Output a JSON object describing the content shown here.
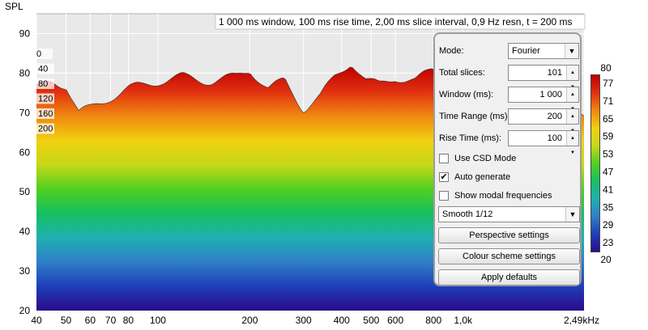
{
  "chart_data": {
    "type": "waterfall",
    "ylabel": "SPL",
    "title": "1 000 ms window, 100 ms rise time, 2,00 ms slice interval, 0,9 Hz resn, t = 200 ms",
    "ylim": [
      20,
      95
    ],
    "xlim": [
      40,
      2490
    ],
    "x_log": true,
    "y_ticks": [
      20,
      30,
      40,
      50,
      60,
      70,
      80,
      90
    ],
    "x_ticks": [
      {
        "f": 40,
        "label": "40"
      },
      {
        "f": 50,
        "label": "50"
      },
      {
        "f": 60,
        "label": "60"
      },
      {
        "f": 70,
        "label": "70"
      },
      {
        "f": 80,
        "label": "80"
      },
      {
        "f": 100,
        "label": "100"
      },
      {
        "f": 200,
        "label": "200"
      },
      {
        "f": 300,
        "label": "300"
      },
      {
        "f": 400,
        "label": "400"
      },
      {
        "f": 500,
        "label": "500"
      },
      {
        "f": 600,
        "label": "600"
      },
      {
        "f": 800,
        "label": "800"
      },
      {
        "f": 1000,
        "label": "1,0k"
      },
      {
        "f": 2490,
        "label": "2,49kHz"
      }
    ],
    "slice_time_labels": [
      "0",
      "40",
      "80",
      "120",
      "160",
      "200"
    ],
    "first_slice_spl": [
      [
        40,
        76
      ],
      [
        45,
        78
      ],
      [
        50,
        77
      ],
      [
        55,
        70
      ],
      [
        60,
        71
      ],
      [
        70,
        74
      ],
      [
        80,
        76
      ],
      [
        90,
        77
      ],
      [
        100,
        78
      ],
      [
        120,
        79
      ],
      [
        150,
        78
      ],
      [
        180,
        79
      ],
      [
        200,
        81
      ],
      [
        230,
        76
      ],
      [
        260,
        78
      ],
      [
        300,
        71
      ],
      [
        340,
        74
      ],
      [
        380,
        79
      ],
      [
        430,
        83
      ],
      [
        480,
        78
      ],
      [
        530,
        77
      ],
      [
        600,
        79
      ],
      [
        700,
        78
      ],
      [
        800,
        81
      ],
      [
        900,
        78
      ],
      [
        1000,
        77
      ],
      [
        1200,
        76
      ],
      [
        1500,
        74
      ],
      [
        2000,
        72
      ],
      [
        2490,
        70
      ]
    ],
    "last_slice_spl": [
      [
        40,
        41
      ],
      [
        50,
        38
      ],
      [
        60,
        37
      ],
      [
        80,
        35
      ],
      [
        100,
        34
      ],
      [
        150,
        34
      ],
      [
        200,
        33
      ],
      [
        300,
        31
      ],
      [
        500,
        29
      ],
      [
        800,
        28
      ],
      [
        1200,
        27
      ],
      [
        2490,
        25
      ]
    ],
    "colour_scale": {
      "min": 20,
      "max": 80,
      "ticks": [
        20,
        23,
        29,
        35,
        41,
        47,
        53,
        59,
        65,
        71,
        77,
        80
      ],
      "colors": [
        "#2b0a8c",
        "#1e3fb8",
        "#2f7fc8",
        "#1fb0b0",
        "#16c060",
        "#50d020",
        "#c8d818",
        "#f0d010",
        "#f08810",
        "#e03010",
        "#c00000"
      ]
    }
  },
  "panel": {
    "mode_label": "Mode:",
    "mode_value": "Fourier",
    "total_slices_label": "Total slices:",
    "total_slices_value": "101",
    "window_label": "Window (ms):",
    "window_value": "1 000",
    "time_range_label": "Time Range (ms):",
    "time_range_value": "200",
    "rise_time_label": "Rise Time (ms):",
    "rise_time_value": "100",
    "csd_mode_label": "Use CSD Mode",
    "csd_mode_checked": false,
    "auto_generate_label": "Auto generate",
    "auto_generate_checked": true,
    "modal_label": "Show modal frequencies",
    "modal_checked": false,
    "smoothing_value": "Smooth 1/12",
    "perspective_button": "Perspective settings",
    "colour_scheme_button": "Colour scheme settings",
    "apply_defaults_button": "Apply defaults"
  }
}
